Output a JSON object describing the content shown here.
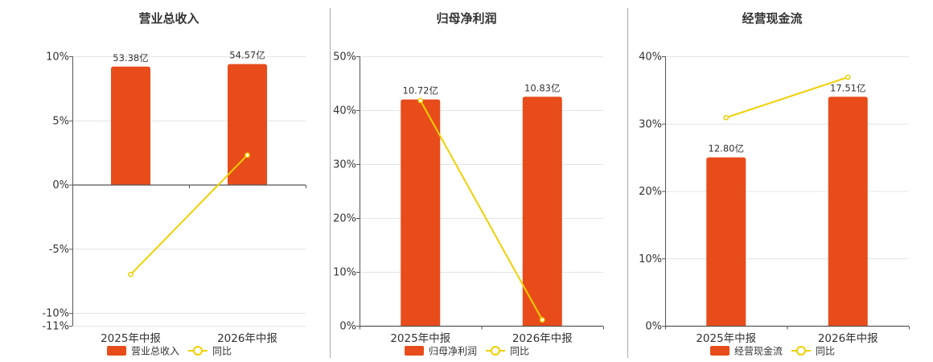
{
  "colors": {
    "bar": "#e84c1a",
    "line": "#f0d000",
    "grid": "#e4e4e4",
    "axis": "#555555",
    "divider": "#aaaaaa"
  },
  "legend_line_label": "同比",
  "chart_data": [
    {
      "type": "bar",
      "title": "营业总收入",
      "categories": [
        "2025年中报",
        "2026年中报"
      ],
      "series": [
        {
          "name": "营业总收入",
          "type": "bar",
          "values": [
            9.2,
            9.4
          ],
          "labels": [
            "53.38亿",
            "54.57亿"
          ]
        },
        {
          "name": "同比",
          "type": "line",
          "values": [
            -7.0,
            2.3
          ]
        }
      ],
      "y_ticks": [
        "10%",
        "5%",
        "0%",
        "-5%",
        "-10%",
        "-11%"
      ],
      "ylim": [
        -11,
        10
      ],
      "baseline": 0
    },
    {
      "type": "bar",
      "title": "归母净利润",
      "categories": [
        "2025年中报",
        "2026年中报"
      ],
      "series": [
        {
          "name": "归母净利润",
          "type": "bar",
          "values": [
            42.0,
            42.5
          ],
          "labels": [
            "10.72亿",
            "10.83亿"
          ]
        },
        {
          "name": "同比",
          "type": "line",
          "values": [
            41.8,
            1.1
          ]
        }
      ],
      "y_ticks": [
        "50%",
        "40%",
        "30%",
        "20%",
        "10%",
        "0%"
      ],
      "ylim": [
        0,
        50
      ],
      "baseline": 0
    },
    {
      "type": "bar",
      "title": "经营现金流",
      "categories": [
        "2025年中报",
        "2026年中报"
      ],
      "series": [
        {
          "name": "经营现金流",
          "type": "bar",
          "values": [
            25.0,
            34.0
          ],
          "labels": [
            "12.80亿",
            "17.51亿"
          ]
        },
        {
          "name": "同比",
          "type": "line",
          "values": [
            30.9,
            36.9
          ]
        }
      ],
      "y_ticks": [
        "40%",
        "30%",
        "20%",
        "10%",
        "0%"
      ],
      "ylim": [
        0,
        40
      ],
      "baseline": 0
    }
  ]
}
